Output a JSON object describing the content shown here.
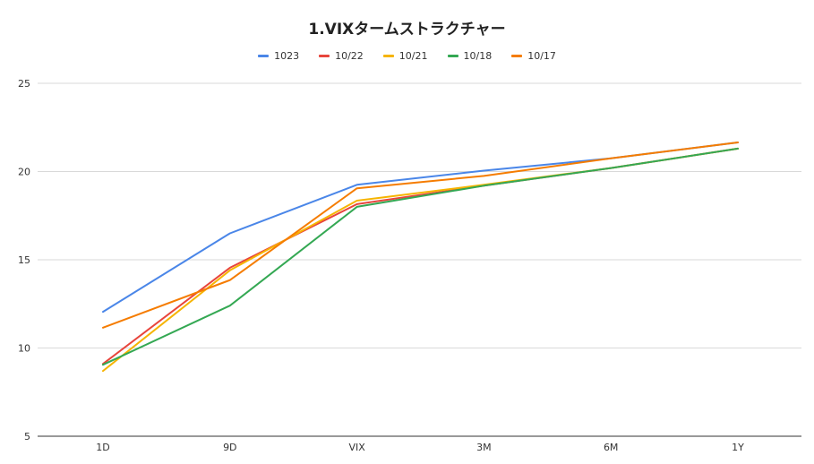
{
  "chart_data": {
    "type": "line",
    "title": "1.VIXタームストラクチャー",
    "xlabel": "",
    "ylabel": "",
    "categories": [
      "1D",
      "9D",
      "VIX",
      "3M",
      "6M",
      "1Y"
    ],
    "ylim": [
      5,
      25
    ],
    "yticks": [
      5,
      10,
      15,
      20,
      25
    ],
    "grid": true,
    "legend_position": "top",
    "series": [
      {
        "name": "1023",
        "color": "#4a86e8",
        "values": [
          12.05,
          16.5,
          19.25,
          20.05,
          20.75,
          21.65
        ]
      },
      {
        "name": "10/22",
        "color": "#e8453c",
        "values": [
          9.1,
          14.55,
          18.15,
          19.2,
          20.2,
          21.3
        ]
      },
      {
        "name": "10/21",
        "color": "#f6b400",
        "values": [
          8.7,
          14.4,
          18.35,
          19.25,
          20.2,
          21.3
        ]
      },
      {
        "name": "10/18",
        "color": "#34a853",
        "values": [
          9.05,
          12.4,
          18.0,
          19.2,
          20.2,
          21.3
        ]
      },
      {
        "name": "10/17",
        "color": "#f57c00",
        "values": [
          11.15,
          13.85,
          19.05,
          19.75,
          20.75,
          21.65
        ]
      }
    ]
  }
}
